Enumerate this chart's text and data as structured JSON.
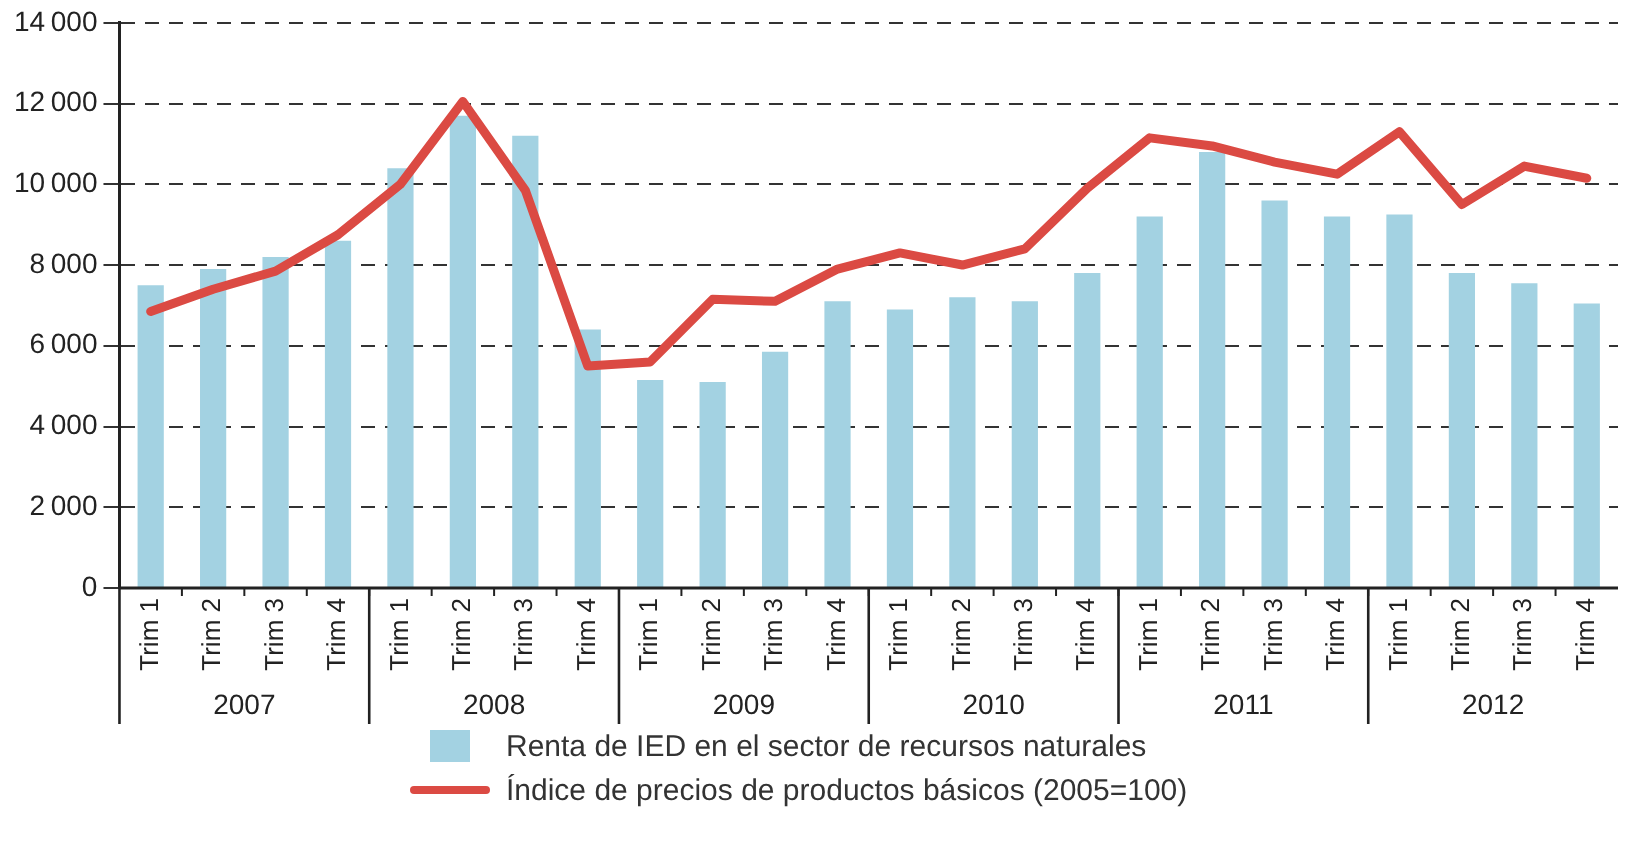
{
  "chart_data": {
    "type": "bar",
    "categories": [
      "Trim 1",
      "Trim 2",
      "Trim 3",
      "Trim 4",
      "Trim 1",
      "Trim 2",
      "Trim 3",
      "Trim 4",
      "Trim 1",
      "Trim 2",
      "Trim 3",
      "Trim 4",
      "Trim 1",
      "Trim 2",
      "Trim 3",
      "Trim 4",
      "Trim 1",
      "Trim 2",
      "Trim 3",
      "Trim 4",
      "Trim 1",
      "Trim 2",
      "Trim 3",
      "Trim 4"
    ],
    "series": [
      {
        "name": "Renta de IED en el sector de recursos naturales",
        "color": "#a3d2e2",
        "values": [
          7500,
          7900,
          8200,
          8600,
          10400,
          11700,
          11200,
          6400,
          5150,
          5100,
          5850,
          7100,
          6900,
          7200,
          7100,
          7800,
          9200,
          10800,
          9600,
          9200,
          9250,
          7800,
          7550,
          7050
        ]
      },
      {
        "name": "Índice de precios de productos básicos (2005=100)",
        "type": "line",
        "color": "#db4a43",
        "values": [
          6850,
          7400,
          7850,
          8750,
          10000,
          12050,
          9850,
          5500,
          5600,
          7150,
          7100,
          7900,
          8300,
          8000,
          8400,
          9900,
          11150,
          10950,
          10550,
          10250,
          11300,
          9500,
          10450,
          10150
        ]
      }
    ],
    "annotations": [
      "2007",
      "2008",
      "2009",
      "2010",
      "2011",
      "2012"
    ],
    "ylim": [
      0,
      14000
    ],
    "yticks": [
      0,
      2000,
      4000,
      6000,
      8000,
      10000,
      12000,
      14000
    ],
    "grid": "y",
    "legend": "bottom",
    "marker": "none",
    "line_style": "solid"
  }
}
